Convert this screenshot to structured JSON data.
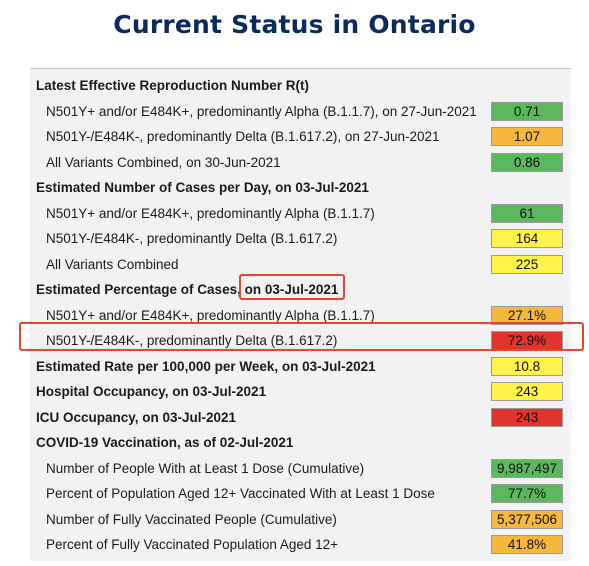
{
  "title": "Current Status in Ontario",
  "rows": [
    {
      "type": "section",
      "label": "Latest Effective Reproduction Number R(t)"
    },
    {
      "type": "item",
      "label": "N501Y+ and/or E484K+, predominantly Alpha (B.1.1.7), on 27-Jun-2021",
      "value": "0.71",
      "color": "green"
    },
    {
      "type": "item",
      "label": "N501Y-/E484K-, predominantly Delta (B.1.617.2), on 27-Jun-2021",
      "value": "1.07",
      "color": "orange"
    },
    {
      "type": "item",
      "label": "All Variants Combined, on 30-Jun-2021",
      "value": "0.86",
      "color": "green"
    },
    {
      "type": "section",
      "label": "Estimated Number of Cases per Day, on 03-Jul-2021"
    },
    {
      "type": "item",
      "label": "N501Y+ and/or E484K+, predominantly Alpha (B.1.1.7)",
      "value": "61",
      "color": "green"
    },
    {
      "type": "item",
      "label": "N501Y-/E484K-, predominantly Delta (B.1.617.2)",
      "value": "164",
      "color": "yellow"
    },
    {
      "type": "item",
      "label": "All Variants Combined",
      "value": "225",
      "color": "yellow"
    },
    {
      "type": "section",
      "label": "Estimated Percentage of Cases, on 03-Jul-2021"
    },
    {
      "type": "item",
      "label": "N501Y+ and/or E484K+, predominantly Alpha (B.1.1.7)",
      "value": "27.1%",
      "color": "orange"
    },
    {
      "type": "item",
      "label": "N501Y-/E484K-, predominantly Delta (B.1.617.2)",
      "value": "72.9%",
      "color": "red"
    },
    {
      "type": "section",
      "label": "Estimated Rate per 100,000 per Week, on 03-Jul-2021",
      "value": "10.8",
      "color": "yellow"
    },
    {
      "type": "section",
      "label": "Hospital Occupancy, on 03-Jul-2021",
      "value": "243",
      "color": "yellow"
    },
    {
      "type": "section",
      "label": "ICU Occupancy, on 03-Jul-2021",
      "value": "243",
      "color": "red"
    },
    {
      "type": "section",
      "label": "COVID-19 Vaccination, as of 02-Jul-2021"
    },
    {
      "type": "item",
      "label": "Number of People With at Least 1 Dose (Cumulative)",
      "value": "9,987,497",
      "color": "green"
    },
    {
      "type": "item",
      "label": "Percent of Population Aged 12+ Vaccinated With at Least 1 Dose",
      "value": "77.7%",
      "color": "green"
    },
    {
      "type": "item",
      "label": "Number of Fully Vaccinated People (Cumulative)",
      "value": "5,377,506",
      "color": "orange"
    },
    {
      "type": "item",
      "label": "Percent of Fully Vaccinated Population Aged 12+",
      "value": "41.8%",
      "color": "orange"
    }
  ]
}
